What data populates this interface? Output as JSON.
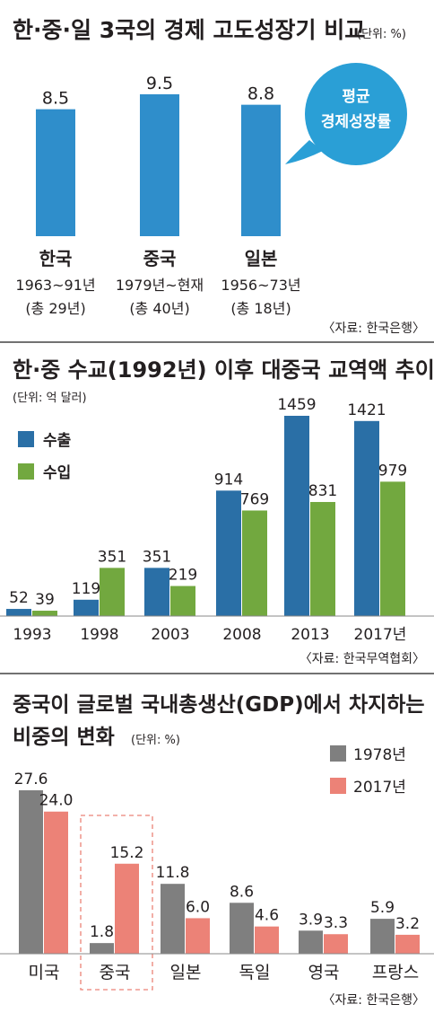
{
  "colors": {
    "blue": "#2f8ecb",
    "darkblue": "#2a6fa6",
    "green": "#72a83f",
    "gray": "#7f7f7f",
    "salmon": "#ec8277",
    "divider": "#444444",
    "bubble": "#2a9fd6"
  },
  "chart_data": [
    {
      "type": "bar",
      "title": "한·중·일 3국의 경제 고도성장기 비교",
      "unit": "(단위: %)",
      "categories": [
        "한국",
        "중국",
        "일본"
      ],
      "periods": [
        "1963~91년",
        "1979년~현재",
        "1956~73년"
      ],
      "durations": [
        "(총 29년)",
        "(총 40년)",
        "(총 18년)"
      ],
      "series": [
        {
          "name": "평균 경제성장률",
          "values": [
            8.5,
            9.5,
            8.8
          ]
        }
      ],
      "value_labels": [
        "8.5",
        "9.5",
        "8.8"
      ],
      "bubble_line1": "평균",
      "bubble_line2": "경제성장률",
      "source": "〈자료: 한국은행〉"
    },
    {
      "type": "bar",
      "title": "한·중 수교(1992년) 이후 대중국 교역액 추이",
      "unit": "(단위: 억 달러)",
      "categories": [
        "1993",
        "1998",
        "2003",
        "2008",
        "2013",
        "2017년"
      ],
      "series": [
        {
          "name": "수출",
          "values": [
            52,
            119,
            351,
            914,
            1459,
            1421
          ]
        },
        {
          "name": "수입",
          "values": [
            39,
            351,
            219,
            769,
            831,
            979
          ]
        }
      ],
      "source": "〈자료: 한국무역협회〉"
    },
    {
      "type": "bar",
      "title_line1": "중국이 글로벌 국내총생산(GDP)에서 차지하는",
      "title_line2": "비중의 변화",
      "unit": "(단위: %)",
      "categories": [
        "미국",
        "중국",
        "일본",
        "독일",
        "영국",
        "프랑스"
      ],
      "series": [
        {
          "name": "1978년",
          "values": [
            27.6,
            1.8,
            11.8,
            8.6,
            3.9,
            5.9
          ],
          "labels": [
            "27.6",
            "1.8",
            "11.8",
            "8.6",
            "3.9",
            "5.9"
          ]
        },
        {
          "name": "2017년",
          "values": [
            24.0,
            15.2,
            6.0,
            4.6,
            3.3,
            3.2
          ],
          "labels": [
            "24.0",
            "15.2",
            "6.0",
            "4.6",
            "3.3",
            "3.2"
          ]
        }
      ],
      "highlight": "중국",
      "source": "〈자료: 한국은행〉"
    }
  ]
}
